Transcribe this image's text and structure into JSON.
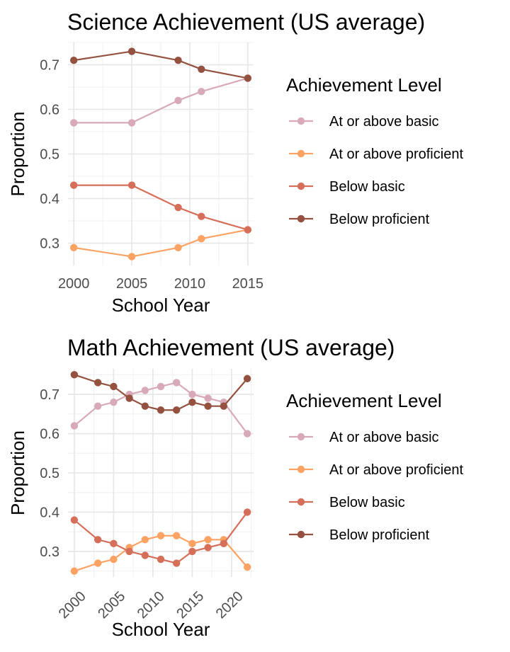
{
  "chart_data": [
    {
      "type": "line",
      "title": "Science Achievement (US average)",
      "xlabel": "School Year",
      "ylabel": "Proportion",
      "xlim": [
        1999.5,
        2015.5
      ],
      "ylim": [
        0.25,
        0.75
      ],
      "xticks": [
        2000,
        2005,
        2010,
        2015
      ],
      "yticks": [
        0.3,
        0.4,
        0.5,
        0.6,
        0.7
      ],
      "x_tick_rotation": 0,
      "grid": true,
      "legend": {
        "title": "Achievement Level",
        "position": "right",
        "entries": [
          "At or above basic",
          "At or above proficient",
          "Below basic",
          "Below proficient"
        ]
      },
      "x": [
        2000,
        2005,
        2009,
        2011,
        2015
      ],
      "series": [
        {
          "name": "At or above basic",
          "color": "#d8a9b9",
          "values": [
            0.57,
            0.57,
            0.62,
            0.64,
            0.67
          ]
        },
        {
          "name": "At or above proficient",
          "color": "#fca262",
          "values": [
            0.29,
            0.27,
            0.29,
            0.31,
            0.33
          ]
        },
        {
          "name": "Below basic",
          "color": "#d66f59",
          "values": [
            0.43,
            0.43,
            0.38,
            0.36,
            0.33
          ]
        },
        {
          "name": "Below proficient",
          "color": "#94513f",
          "values": [
            0.71,
            0.73,
            0.71,
            0.69,
            0.67
          ]
        }
      ]
    },
    {
      "type": "line",
      "title": "Math Achievement (US average)",
      "xlabel": "School Year",
      "ylabel": "Proportion",
      "xlim": [
        1999.2,
        2022.8
      ],
      "ylim": [
        0.235,
        0.765
      ],
      "xticks": [
        2000,
        2005,
        2010,
        2015,
        2020
      ],
      "yticks": [
        0.3,
        0.4,
        0.5,
        0.6,
        0.7
      ],
      "x_tick_rotation": 45,
      "grid": true,
      "legend": {
        "title": "Achievement Level",
        "position": "right",
        "entries": [
          "At or above basic",
          "At or above proficient",
          "Below basic",
          "Below proficient"
        ]
      },
      "x": [
        2000,
        2003,
        2005,
        2007,
        2009,
        2011,
        2013,
        2015,
        2017,
        2019,
        2022
      ],
      "series": [
        {
          "name": "At or above basic",
          "color": "#d8a9b9",
          "values": [
            0.62,
            0.67,
            0.68,
            0.7,
            0.71,
            0.72,
            0.73,
            0.7,
            0.69,
            0.68,
            0.6
          ]
        },
        {
          "name": "At or above proficient",
          "color": "#fca262",
          "values": [
            0.25,
            0.27,
            0.28,
            0.31,
            0.33,
            0.34,
            0.34,
            0.32,
            0.33,
            0.33,
            0.26
          ]
        },
        {
          "name": "Below basic",
          "color": "#d66f59",
          "values": [
            0.38,
            0.33,
            0.32,
            0.3,
            0.29,
            0.28,
            0.27,
            0.3,
            0.31,
            0.32,
            0.4
          ]
        },
        {
          "name": "Below proficient",
          "color": "#94513f",
          "values": [
            0.75,
            0.73,
            0.72,
            0.69,
            0.67,
            0.66,
            0.66,
            0.68,
            0.67,
            0.67,
            0.74
          ]
        }
      ]
    }
  ]
}
